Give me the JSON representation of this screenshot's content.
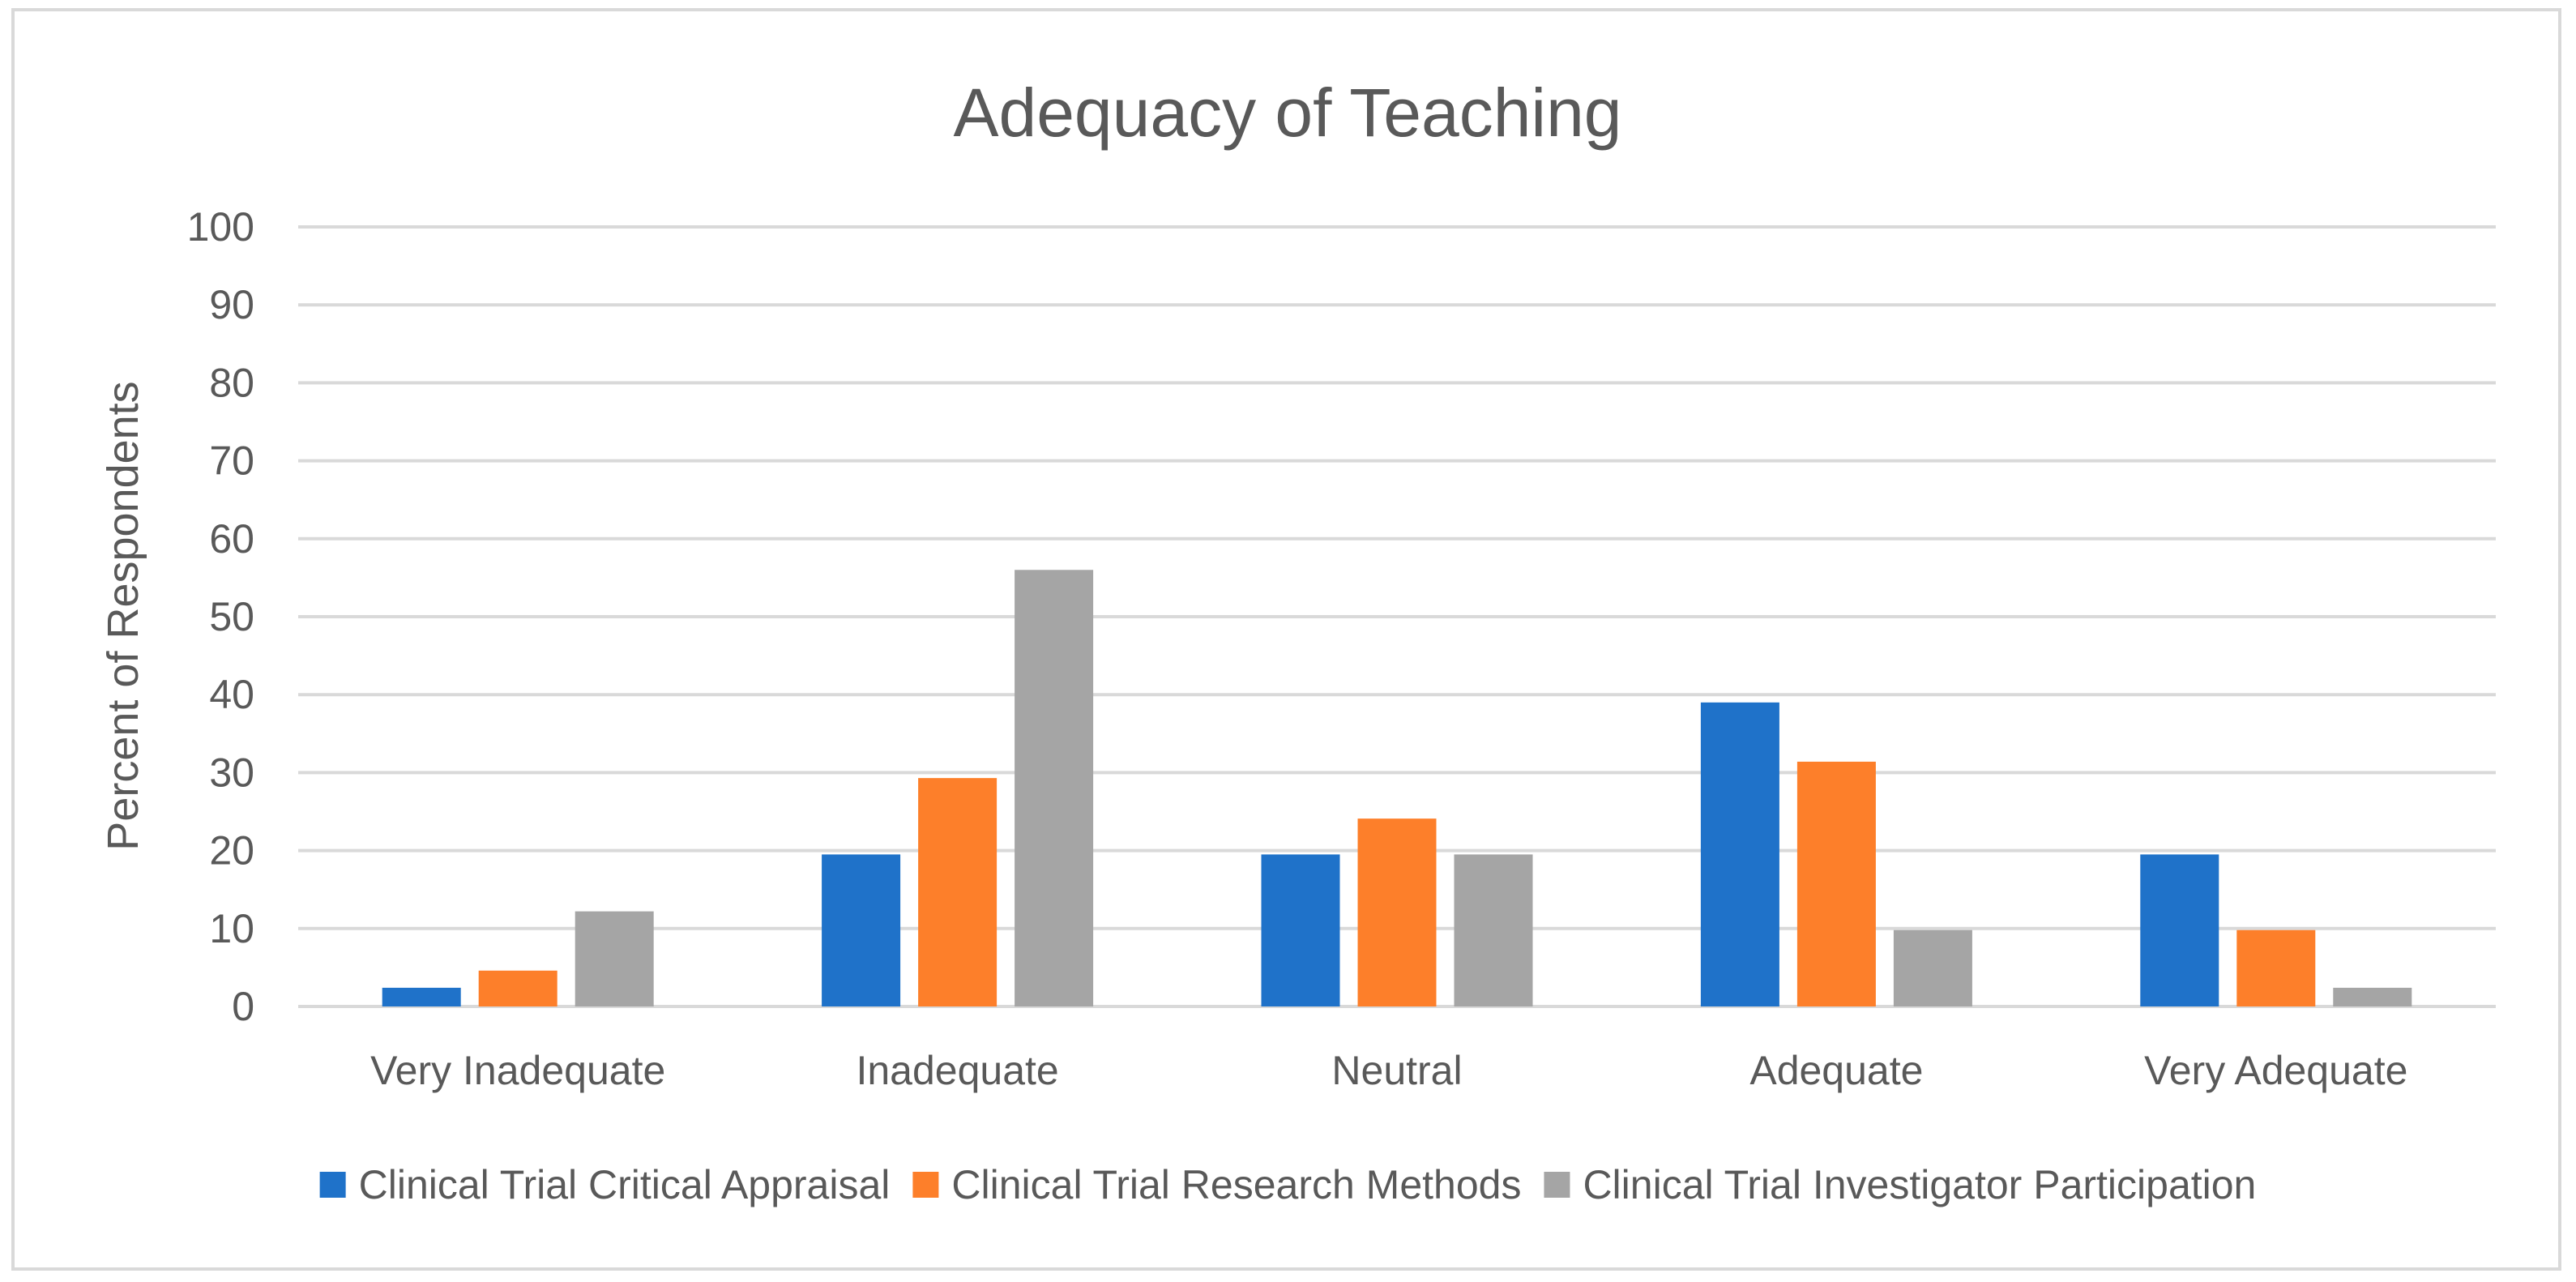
{
  "chart_data": {
    "type": "bar",
    "title": "Adequacy of Teaching",
    "xlabel": "",
    "ylabel": "Percent of Respondents",
    "ylim": [
      0,
      100
    ],
    "yticks": [
      0,
      10,
      20,
      30,
      40,
      50,
      60,
      70,
      80,
      90,
      100
    ],
    "grid": true,
    "legend_position": "bottom",
    "categories": [
      "Very Inadequate",
      "Inadequate",
      "Neutral",
      "Adequate",
      "Very Adequate"
    ],
    "series": [
      {
        "name": "Clinical Trial Critical Appraisal",
        "color": "#1f72c9",
        "values": [
          2.4,
          19.5,
          19.5,
          39,
          19.5
        ]
      },
      {
        "name": "Clinical Trial Research Methods",
        "color": "#fd7f2a",
        "values": [
          4.6,
          29.3,
          24.1,
          31.4,
          9.8
        ]
      },
      {
        "name": "Clinical Trial Investigator Participation",
        "color": "#a5a5a5",
        "values": [
          12.2,
          56,
          19.5,
          9.8,
          2.4
        ]
      }
    ]
  }
}
